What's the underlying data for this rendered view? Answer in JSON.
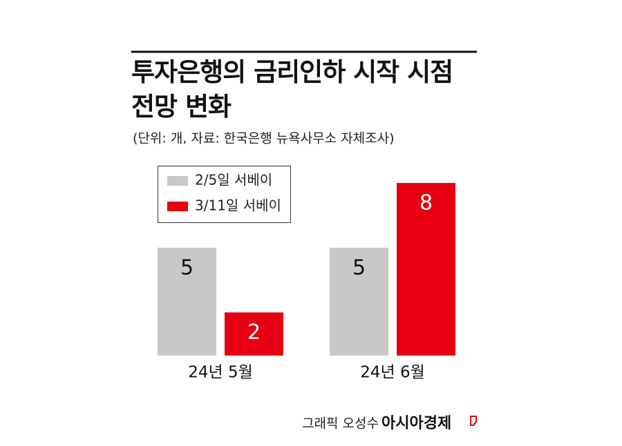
{
  "chart_data": {
    "type": "bar",
    "title": "투자은행의 금리인하 시작 시점 전망 변화",
    "subtitle": "(단위: 개, 자료: 한국은행 뉴욕사무소 자체조사)",
    "credit": "그래픽 오성수",
    "source": "아시아경제",
    "categories": [
      "24년 5월",
      "24년 6월"
    ],
    "series": [
      {
        "name": "2/5일 서베이",
        "color": "#c8c8c8",
        "values": [
          5,
          5
        ]
      },
      {
        "name": "3/11일 서베이",
        "color": "#e60012",
        "values": [
          2,
          8
        ]
      }
    ],
    "ylim": [
      0,
      8
    ]
  }
}
